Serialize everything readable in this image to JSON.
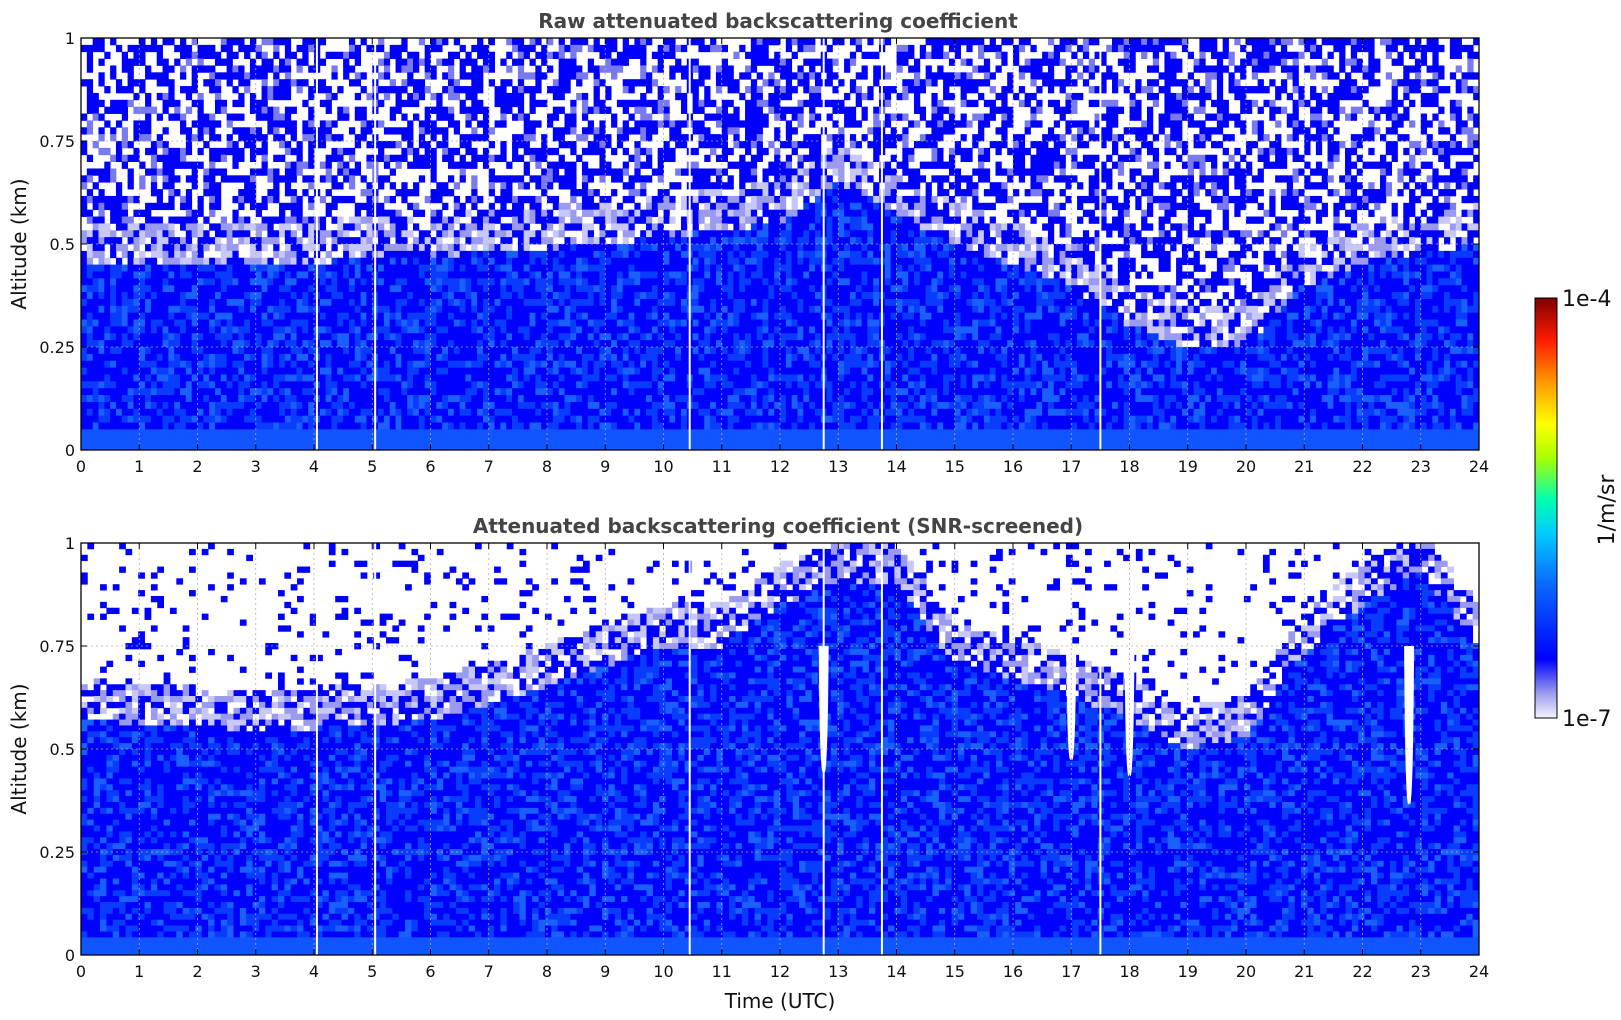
{
  "chart_data": [
    {
      "type": "heatmap",
      "title": "Raw attenuated backscattering coefficient",
      "xlabel": "",
      "ylabel": "Altitude (km)",
      "xlim": [
        0,
        24
      ],
      "ylim": [
        0,
        1
      ],
      "xticks": [
        "0",
        "1",
        "2",
        "3",
        "4",
        "5",
        "6",
        "7",
        "8",
        "9",
        "10",
        "11",
        "12",
        "13",
        "14",
        "15",
        "16",
        "17",
        "18",
        "19",
        "20",
        "21",
        "22",
        "23",
        "24"
      ],
      "yticks": [
        "0",
        "0.25",
        "0.5",
        "0.75",
        "1"
      ],
      "ytick_values": [
        0,
        0.25,
        0.5,
        0.75,
        1
      ],
      "grid": true,
      "data_gaps_utc": [
        4.05,
        5.05,
        10.45,
        12.75,
        13.75,
        17.5
      ],
      "signal_top_km_by_hour": [
        [
          0,
          0.5
        ],
        [
          3,
          0.5
        ],
        [
          6,
          0.52
        ],
        [
          9,
          0.55
        ],
        [
          12,
          0.6
        ],
        [
          13,
          0.7
        ],
        [
          15,
          0.55
        ],
        [
          17,
          0.45
        ],
        [
          18,
          0.35
        ],
        [
          19,
          0.3
        ],
        [
          20,
          0.3
        ],
        [
          21,
          0.45
        ],
        [
          22,
          0.5
        ],
        [
          24,
          0.55
        ]
      ]
    },
    {
      "type": "heatmap",
      "title": "Attenuated backscattering coefficient (SNR-screened)",
      "xlabel": "Time (UTC)",
      "ylabel": "Altitude (km)",
      "xlim": [
        0,
        24
      ],
      "ylim": [
        0,
        1
      ],
      "xticks": [
        "0",
        "1",
        "2",
        "3",
        "4",
        "5",
        "6",
        "7",
        "8",
        "9",
        "10",
        "11",
        "12",
        "13",
        "14",
        "15",
        "16",
        "17",
        "18",
        "19",
        "20",
        "21",
        "22",
        "23",
        "24"
      ],
      "yticks": [
        "0",
        "0.25",
        "0.5",
        "0.75",
        "1"
      ],
      "ytick_values": [
        0,
        0.25,
        0.5,
        0.75,
        1
      ],
      "grid": true,
      "data_gaps_utc": [
        4.05,
        5.05,
        10.45,
        12.75,
        13.75,
        17.5
      ],
      "masked_dips": [
        {
          "time": 12.75,
          "bottom_km": 0.45
        },
        {
          "time": 17.0,
          "bottom_km": 0.48
        },
        {
          "time": 18.0,
          "bottom_km": 0.44
        },
        {
          "time": 22.8,
          "bottom_km": 0.37
        }
      ],
      "signal_top_km_by_hour": [
        [
          0,
          0.62
        ],
        [
          2,
          0.6
        ],
        [
          4,
          0.6
        ],
        [
          6,
          0.62
        ],
        [
          7.5,
          0.68
        ],
        [
          9,
          0.75
        ],
        [
          10,
          0.8
        ],
        [
          11,
          0.8
        ],
        [
          12,
          0.9
        ],
        [
          13,
          0.95
        ],
        [
          14,
          0.95
        ],
        [
          15,
          0.75
        ],
        [
          16,
          0.72
        ],
        [
          17,
          0.68
        ],
        [
          18,
          0.62
        ],
        [
          19,
          0.55
        ],
        [
          20,
          0.58
        ],
        [
          21,
          0.78
        ],
        [
          22,
          0.9
        ],
        [
          23,
          0.98
        ],
        [
          24,
          0.8
        ]
      ]
    }
  ],
  "colorbar": {
    "label": "1/m/sr",
    "max_label": "1e-4",
    "min_label": "1e-7",
    "colormap": [
      "#f4f4ff",
      "#9999ee",
      "#0000ff",
      "#00aaff",
      "#00ffcc",
      "#ffff00",
      "#ff8800",
      "#ff0000",
      "#800000"
    ]
  }
}
